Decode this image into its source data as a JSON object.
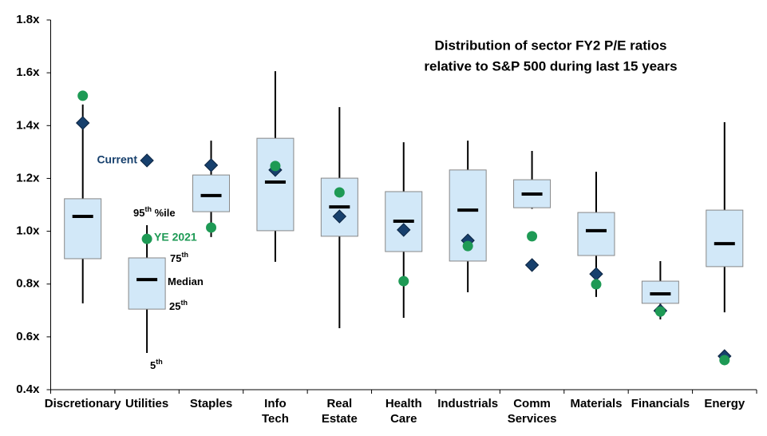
{
  "chart_data": {
    "type": "box",
    "title": [
      "Distribution of sector FY2 P/E ratios",
      "relative to S&P 500 during last 15 years"
    ],
    "categories": [
      "Discretionary",
      "Utilities",
      "Staples",
      "Info Tech",
      "Real Estate",
      "Health Care",
      "Industrials",
      "Comm Services",
      "Materials",
      "Financials",
      "Energy"
    ],
    "stats": {
      "p5": [
        0.727,
        0.539,
        0.978,
        0.884,
        0.633,
        0.672,
        0.769,
        1.085,
        0.751,
        0.666,
        0.693
      ],
      "p25": [
        0.896,
        0.705,
        1.074,
        1.002,
        0.981,
        0.923,
        0.887,
        1.089,
        0.908,
        0.727,
        0.866
      ],
      "median": [
        1.056,
        0.817,
        1.135,
        1.186,
        1.092,
        1.038,
        1.08,
        1.141,
        1.002,
        0.763,
        0.953
      ],
      "p75": [
        1.123,
        0.899,
        1.213,
        1.352,
        1.201,
        1.15,
        1.232,
        1.195,
        1.071,
        0.811,
        1.08
      ],
      "p95": [
        1.48,
        1.023,
        1.343,
        1.606,
        1.47,
        1.337,
        1.343,
        1.304,
        1.225,
        0.887,
        1.413
      ]
    },
    "box_color": "#d2e8f8",
    "series": [
      {
        "name": "Current",
        "color": "#17406d",
        "marker": "diamond",
        "values": [
          1.41,
          1.268,
          1.25,
          1.232,
          1.056,
          1.005,
          0.965,
          0.872,
          0.838,
          0.699,
          0.527
        ]
      },
      {
        "name": "YE 2021",
        "color": "#1e9a55",
        "marker": "circle",
        "values": [
          1.513,
          0.971,
          1.014,
          1.247,
          1.147,
          0.811,
          0.944,
          0.981,
          0.799,
          0.696,
          0.512
        ]
      }
    ],
    "key": {
      "p95": {
        "base": "95",
        "sup": "th",
        "after": " %ile"
      },
      "p75": {
        "base": "75",
        "sup": "th"
      },
      "median": {
        "base": "Median"
      },
      "p25": {
        "base": "25",
        "sup": "th"
      },
      "p5": {
        "base": "5",
        "sup": "th"
      }
    },
    "ylim": [
      0.4,
      1.8
    ],
    "yticks": [
      {
        "value": 0.4,
        "label": "0.4x"
      },
      {
        "value": 0.6,
        "label": "0.6x"
      },
      {
        "value": 0.8,
        "label": "0.8x"
      },
      {
        "value": 1.0,
        "label": "1.0x"
      },
      {
        "value": 1.2,
        "label": "1.2x"
      },
      {
        "value": 1.4,
        "label": "1.4x"
      },
      {
        "value": 1.6,
        "label": "1.6x"
      },
      {
        "value": 1.8,
        "label": "1.8x"
      }
    ]
  }
}
